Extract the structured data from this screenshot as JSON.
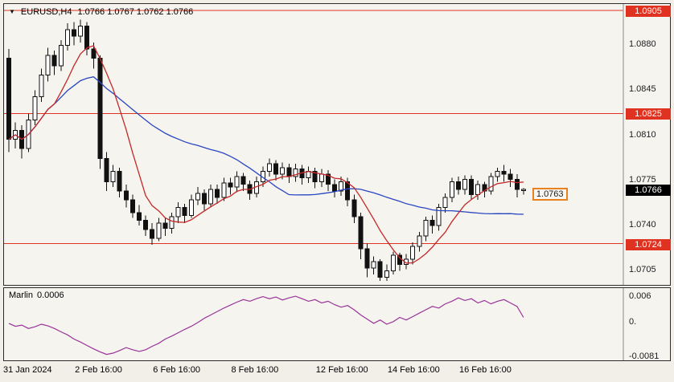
{
  "window": {
    "collapse_icon": "▼",
    "title_symbol": "EURUSD,H4",
    "title_ohlc": "1.0766 1.0767 1.0762 1.0766"
  },
  "colors": {
    "panel_bg": "#f6f4ef",
    "candle_outline": "#111111",
    "candle_bull_fill": "#ffffff",
    "candle_bear_fill": "#111111",
    "level_line": "#e03220",
    "ma_fast": "#c42828",
    "ma_slow": "#2a46c0",
    "indicator_line": "#993399",
    "badge_red_bg": "#e03220",
    "badge_black_bg": "#000000",
    "float_tag_border": "#e8821e",
    "axis_separator": "#8a8a8a"
  },
  "indicator_panel": {
    "name": "Marlin",
    "value": "0.0006",
    "ticks": [
      {
        "text": "0.006",
        "v": 0.006
      },
      {
        "text": "0.",
        "v": 0
      },
      {
        "text": "-0.0081",
        "v": -0.0081
      }
    ]
  },
  "time_axis": [
    {
      "text": "31 Jan 2024",
      "i": 0
    },
    {
      "text": "2 Feb 16:00",
      "i": 11
    },
    {
      "text": "6 Feb 16:00",
      "i": 23
    },
    {
      "text": "8 Feb 16:00",
      "i": 35
    },
    {
      "text": "12 Feb 16:00",
      "i": 48
    },
    {
      "text": "14 Feb 16:00",
      "i": 59
    },
    {
      "text": "16 Feb 16:00",
      "i": 70
    }
  ],
  "chart_data": {
    "type": "candlestick",
    "symbol": "EURUSD",
    "timeframe": "H4",
    "ylim": [
      1.0692,
      1.091
    ],
    "y_ticks": [
      1.088,
      1.0845,
      1.081,
      1.0775,
      1.074,
      1.0705
    ],
    "h_lines": [
      1.0905,
      1.0825,
      1.0724
    ],
    "current_bid": 1.0766,
    "float_price": 1.0763,
    "overlays": [
      {
        "name": "ma-slow",
        "type": "sma",
        "period": 30,
        "color_key": "ma_slow"
      },
      {
        "name": "ma-fast",
        "type": "sma",
        "period": 8,
        "color_key": "ma_fast"
      }
    ],
    "ohlc": [
      [
        1.0868,
        1.0875,
        1.0795,
        1.0805
      ],
      [
        1.0805,
        1.0818,
        1.0798,
        1.0812
      ],
      [
        1.0812,
        1.0816,
        1.079,
        1.0798
      ],
      [
        1.0798,
        1.0825,
        1.0795,
        1.082
      ],
      [
        1.082,
        1.0843,
        1.0816,
        1.0838
      ],
      [
        1.0838,
        1.086,
        1.0834,
        1.0855
      ],
      [
        1.0855,
        1.0876,
        1.085,
        1.087
      ],
      [
        1.087,
        1.0874,
        1.0855,
        1.0862
      ],
      [
        1.0862,
        1.0882,
        1.0858,
        1.0878
      ],
      [
        1.0878,
        1.0895,
        1.0874,
        1.089
      ],
      [
        1.089,
        1.0896,
        1.0878,
        1.0885
      ],
      [
        1.0885,
        1.0898,
        1.088,
        1.0893
      ],
      [
        1.0893,
        1.0896,
        1.087,
        1.0875
      ],
      [
        1.0875,
        1.088,
        1.086,
        1.0868
      ],
      [
        1.0868,
        1.087,
        1.0782,
        1.079
      ],
      [
        1.079,
        1.0795,
        1.0765,
        1.0772
      ],
      [
        1.0772,
        1.0785,
        1.0768,
        1.078
      ],
      [
        1.078,
        1.0783,
        1.076,
        1.0765
      ],
      [
        1.0765,
        1.077,
        1.0752,
        1.0758
      ],
      [
        1.0758,
        1.0762,
        1.0744,
        1.0748
      ],
      [
        1.0748,
        1.0754,
        1.0738,
        1.0742
      ],
      [
        1.0742,
        1.0746,
        1.073,
        1.0735
      ],
      [
        1.0735,
        1.074,
        1.0723,
        1.0728
      ],
      [
        1.0728,
        1.0744,
        1.0726,
        1.074
      ],
      [
        1.074,
        1.0744,
        1.073,
        1.0736
      ],
      [
        1.0736,
        1.0748,
        1.0732,
        1.0745
      ],
      [
        1.0745,
        1.0756,
        1.074,
        1.0752
      ],
      [
        1.0752,
        1.0755,
        1.074,
        1.0746
      ],
      [
        1.0746,
        1.0762,
        1.0744,
        1.0758
      ],
      [
        1.0758,
        1.0768,
        1.0754,
        1.0763
      ],
      [
        1.0763,
        1.0766,
        1.075,
        1.0755
      ],
      [
        1.0755,
        1.077,
        1.0752,
        1.0766
      ],
      [
        1.0766,
        1.077,
        1.0755,
        1.076
      ],
      [
        1.076,
        1.0775,
        1.0757,
        1.0771
      ],
      [
        1.0771,
        1.0775,
        1.0762,
        1.0768
      ],
      [
        1.0768,
        1.078,
        1.0764,
        1.0776
      ],
      [
        1.0776,
        1.0779,
        1.0765,
        1.077
      ],
      [
        1.077,
        1.0773,
        1.0758,
        1.0763
      ],
      [
        1.0763,
        1.0776,
        1.076,
        1.0772
      ],
      [
        1.0772,
        1.0784,
        1.0768,
        1.078
      ],
      [
        1.078,
        1.079,
        1.0776,
        1.0786
      ],
      [
        1.0786,
        1.0789,
        1.0773,
        1.0778
      ],
      [
        1.0778,
        1.0787,
        1.0774,
        1.0783
      ],
      [
        1.0783,
        1.0786,
        1.0771,
        1.0776
      ],
      [
        1.0776,
        1.0786,
        1.0772,
        1.0782
      ],
      [
        1.0782,
        1.0785,
        1.077,
        1.0775
      ],
      [
        1.0775,
        1.0784,
        1.0771,
        1.078
      ],
      [
        1.078,
        1.0783,
        1.0767,
        1.0772
      ],
      [
        1.0772,
        1.0782,
        1.0768,
        1.0778
      ],
      [
        1.0778,
        1.0781,
        1.0765,
        1.077
      ],
      [
        1.077,
        1.0774,
        1.076,
        1.0765
      ],
      [
        1.0765,
        1.0776,
        1.0761,
        1.0772
      ],
      [
        1.0772,
        1.0775,
        1.0753,
        1.0758
      ],
      [
        1.0758,
        1.0762,
        1.074,
        1.0745
      ],
      [
        1.0745,
        1.0748,
        1.0712,
        1.072
      ],
      [
        1.072,
        1.0724,
        1.0698,
        1.0705
      ],
      [
        1.0705,
        1.0714,
        1.07,
        1.071
      ],
      [
        1.071,
        1.0712,
        1.0695,
        1.0698
      ],
      [
        1.0698,
        1.0708,
        1.0695,
        1.0703
      ],
      [
        1.0703,
        1.0718,
        1.07,
        1.0715
      ],
      [
        1.0715,
        1.0717,
        1.0703,
        1.0708
      ],
      [
        1.0708,
        1.0716,
        1.0704,
        1.0712
      ],
      [
        1.0712,
        1.0725,
        1.0708,
        1.0722
      ],
      [
        1.0722,
        1.0733,
        1.0718,
        1.073
      ],
      [
        1.073,
        1.0745,
        1.0726,
        1.0742
      ],
      [
        1.0742,
        1.0746,
        1.0732,
        1.0738
      ],
      [
        1.0738,
        1.0755,
        1.0734,
        1.0752
      ],
      [
        1.0752,
        1.0763,
        1.0748,
        1.076
      ],
      [
        1.076,
        1.0775,
        1.0756,
        1.0772
      ],
      [
        1.0772,
        1.0776,
        1.0762,
        1.0766
      ],
      [
        1.0766,
        1.0777,
        1.0762,
        1.0774
      ],
      [
        1.0774,
        1.0777,
        1.0758,
        1.0762
      ],
      [
        1.0762,
        1.0773,
        1.0758,
        1.077
      ],
      [
        1.077,
        1.0772,
        1.076,
        1.0765
      ],
      [
        1.0765,
        1.0779,
        1.0762,
        1.0776
      ],
      [
        1.0776,
        1.0783,
        1.0772,
        1.078
      ],
      [
        1.078,
        1.0785,
        1.0772,
        1.0778
      ],
      [
        1.0778,
        1.0782,
        1.0768,
        1.0774
      ],
      [
        1.0774,
        1.0778,
        1.076,
        1.0766
      ],
      [
        1.0766,
        1.0767,
        1.0762,
        1.0766
      ]
    ],
    "indicator": {
      "name": "Marlin",
      "current": 0.0006,
      "ylim": [
        -0.0095,
        0.0075
      ],
      "values": [
        -0.0008,
        -0.0015,
        -0.0012,
        -0.002,
        -0.0016,
        -0.001,
        -0.0014,
        -0.002,
        -0.0028,
        -0.0035,
        -0.0045,
        -0.0052,
        -0.006,
        -0.0068,
        -0.0075,
        -0.0081,
        -0.0078,
        -0.0072,
        -0.0065,
        -0.007,
        -0.0074,
        -0.007,
        -0.0062,
        -0.0055,
        -0.0045,
        -0.0038,
        -0.003,
        -0.0022,
        -0.0015,
        -0.0006,
        0.0004,
        0.0012,
        0.002,
        0.0028,
        0.0035,
        0.0042,
        0.0048,
        0.0044,
        0.005,
        0.0055,
        0.005,
        0.0054,
        0.0047,
        0.0052,
        0.0056,
        0.005,
        0.0044,
        0.0048,
        0.004,
        0.0044,
        0.0036,
        0.003,
        0.0034,
        0.0024,
        0.0012,
        0.0002,
        -0.0008,
        0.0,
        -0.001,
        -0.0004,
        0.0006,
        0.0,
        0.0008,
        0.0016,
        0.0024,
        0.0032,
        0.0028,
        0.0038,
        0.0044,
        0.0052,
        0.0046,
        0.005,
        0.004,
        0.0046,
        0.0038,
        0.0044,
        0.0048,
        0.004,
        0.0032,
        0.0006
      ]
    }
  }
}
